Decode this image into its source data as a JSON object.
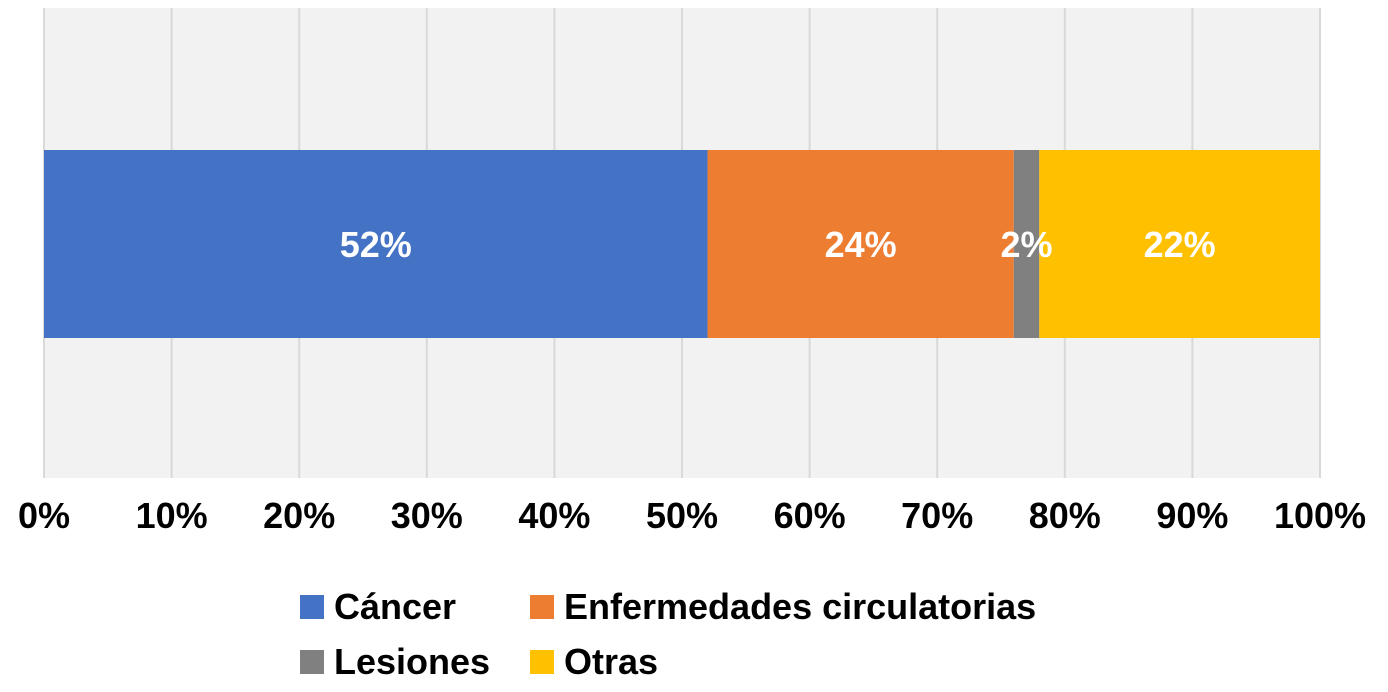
{
  "chart_data": {
    "type": "bar",
    "orientation": "horizontal",
    "stacked": "percent",
    "categories": [
      ""
    ],
    "series": [
      {
        "name": "Cáncer",
        "values": [
          52
        ],
        "label": "52%",
        "color": "#4472C4"
      },
      {
        "name": "Enfermedades circulatorias",
        "values": [
          24
        ],
        "label": "24%",
        "color": "#ED7D31"
      },
      {
        "name": "Lesiones",
        "values": [
          2
        ],
        "label": "2%",
        "color": "#808080"
      },
      {
        "name": "Otras",
        "values": [
          22
        ],
        "label": "22%",
        "color": "#FFC000"
      }
    ],
    "xlim": [
      0,
      100
    ],
    "xticks": [
      "0%",
      "10%",
      "20%",
      "30%",
      "40%",
      "50%",
      "60%",
      "70%",
      "80%",
      "90%",
      "100%"
    ],
    "grid": true,
    "plot_background": "#F2F2F2",
    "legend_position": "bottom"
  }
}
